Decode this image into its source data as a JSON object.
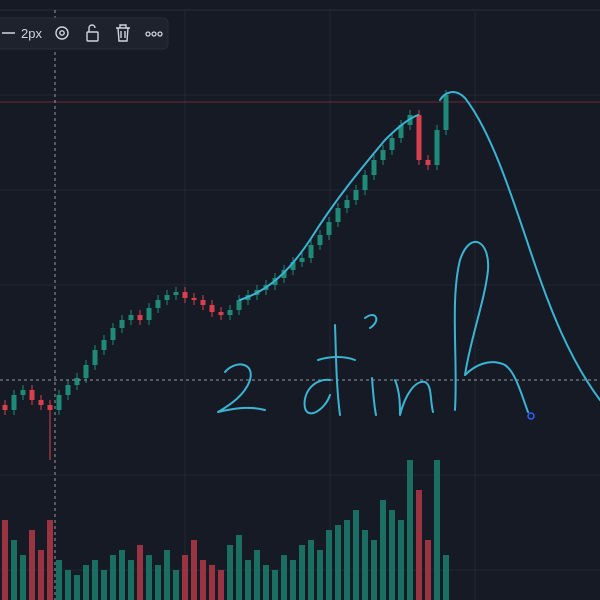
{
  "toolbar": {
    "width_label": "2px"
  },
  "chart": {
    "open": [
      195,
      190,
      205,
      210,
      200,
      195,
      190,
      205,
      215,
      222,
      235,
      250,
      260,
      272,
      280,
      285,
      280,
      292,
      300,
      305,
      308,
      302,
      300,
      295,
      288,
      285,
      290,
      300,
      305,
      310,
      315,
      322,
      330,
      338,
      342,
      355,
      365,
      378,
      392,
      400,
      410,
      425,
      440,
      450,
      462,
      475,
      485,
      440,
      435,
      470
    ],
    "close": [
      190,
      205,
      210,
      200,
      195,
      190,
      205,
      215,
      222,
      235,
      250,
      260,
      272,
      280,
      285,
      280,
      292,
      300,
      305,
      308,
      302,
      300,
      295,
      288,
      285,
      290,
      300,
      305,
      310,
      315,
      322,
      330,
      338,
      342,
      355,
      365,
      378,
      392,
      400,
      410,
      425,
      440,
      450,
      462,
      475,
      485,
      440,
      435,
      470,
      505
    ],
    "high": [
      200,
      210,
      215,
      215,
      205,
      200,
      210,
      220,
      227,
      240,
      255,
      265,
      277,
      285,
      290,
      290,
      297,
      305,
      310,
      313,
      313,
      307,
      305,
      300,
      293,
      295,
      305,
      310,
      315,
      320,
      327,
      335,
      343,
      347,
      360,
      370,
      383,
      397,
      405,
      415,
      430,
      445,
      455,
      467,
      480,
      490,
      490,
      445,
      475,
      510
    ],
    "low": [
      185,
      185,
      200,
      195,
      190,
      140,
      185,
      200,
      210,
      217,
      230,
      245,
      255,
      267,
      275,
      275,
      275,
      287,
      295,
      300,
      297,
      295,
      290,
      283,
      280,
      280,
      285,
      295,
      300,
      305,
      310,
      317,
      325,
      333,
      337,
      350,
      360,
      373,
      387,
      395,
      405,
      420,
      435,
      445,
      457,
      470,
      435,
      430,
      430,
      465
    ],
    "volume": [
      80,
      60,
      45,
      70,
      50,
      80,
      40,
      30,
      25,
      35,
      40,
      30,
      45,
      50,
      40,
      55,
      45,
      35,
      50,
      30,
      45,
      60,
      40,
      35,
      30,
      55,
      65,
      40,
      50,
      35,
      30,
      45,
      40,
      55,
      60,
      50,
      70,
      75,
      80,
      90,
      70,
      60,
      100,
      90,
      80,
      140,
      110,
      60,
      140,
      45
    ]
  }
}
